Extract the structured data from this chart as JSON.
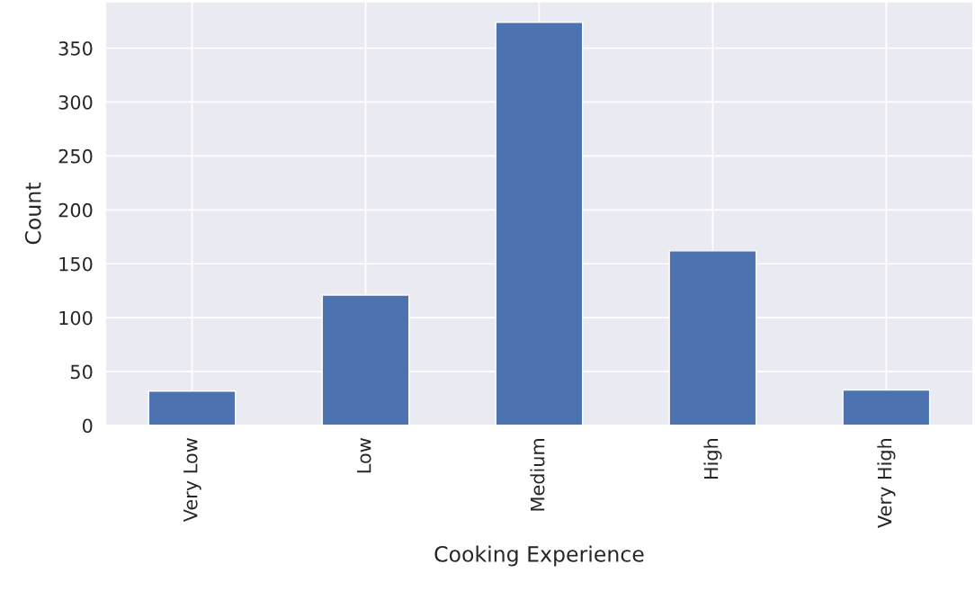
{
  "chart_data": {
    "type": "bar",
    "xlabel": "Cooking Experience",
    "ylabel": "Count",
    "categories": [
      "Very Low",
      "Low",
      "Medium",
      "High",
      "Very High"
    ],
    "values": [
      32,
      121,
      374,
      162,
      33
    ],
    "color": "#4c72b0",
    "ylim": [
      0,
      393
    ],
    "yticks": [
      0,
      50,
      100,
      150,
      200,
      250,
      300,
      350
    ],
    "grid": true
  }
}
